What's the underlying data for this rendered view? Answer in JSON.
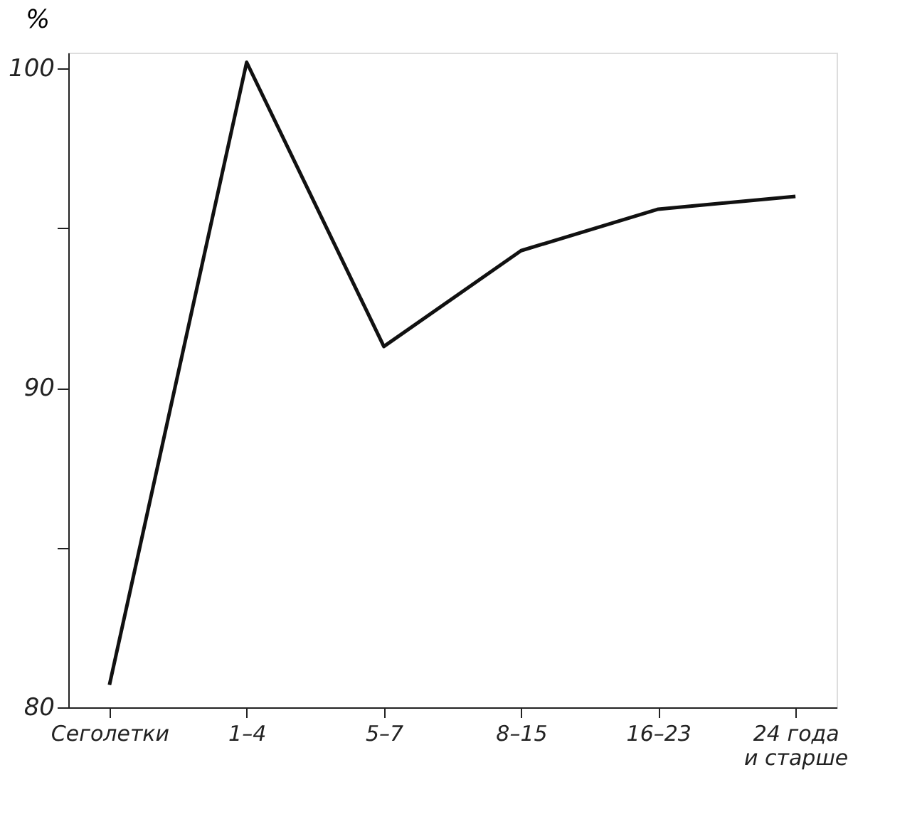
{
  "chart_data": {
    "type": "line",
    "ylabel": "%",
    "categories": [
      "Сеголетки",
      "1–4",
      "5–7",
      "8–15",
      "16–23",
      "24 года\nи старше"
    ],
    "series": [
      {
        "color": "#111111",
        "values": [
          80.7,
          100.2,
          91.3,
          94.3,
          95.6,
          96.0
        ]
      }
    ],
    "ylim": [
      80,
      100.5
    ],
    "yticks": [
      80,
      {
        "value": 85,
        "label": null
      },
      90,
      {
        "value": 95,
        "label": null
      },
      100
    ],
    "grid": false,
    "marker": "none",
    "line_style": "solid"
  }
}
